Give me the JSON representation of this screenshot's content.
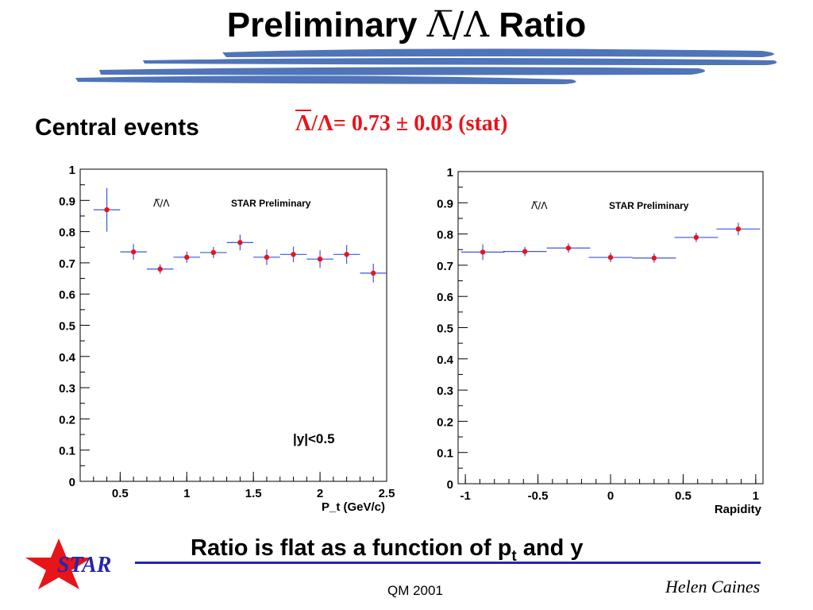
{
  "slide": {
    "title_prefix": "Preliminary ",
    "title_greek": "Λ̅/Λ",
    "title_suffix": " Ratio",
    "subtitle": "Central events",
    "ratio_bar": "Λ",
    "ratio_rest": "/Λ=  0.73 ± 0.03 (stat)",
    "conclusion_prefix": "Ratio is flat as a function of p",
    "conclusion_sub": "t",
    "conclusion_suffix": " and y",
    "logo_text": "STAR",
    "conference": "QM 2001",
    "author": "Helen Caines"
  },
  "colors": {
    "brush": "#4f74b8",
    "accent_red": "#e8141a",
    "footer_blue": "#2626a8",
    "error_bar": "#3b56e0",
    "marker": "#e8141a"
  },
  "chart_data": [
    {
      "type": "scatter",
      "xlabel": "P_t  (GeV/c)",
      "ylabel": "",
      "xlim": [
        0.2,
        2.5
      ],
      "ylim": [
        0,
        1
      ],
      "xticks": [
        0.5,
        1,
        1.5,
        2,
        2.5
      ],
      "xtick_labels": [
        "0.5",
        "1",
        "1.5",
        "2",
        "2.5"
      ],
      "yticks": [
        0,
        0.1,
        0.2,
        0.3,
        0.4,
        0.5,
        0.6,
        0.7,
        0.8,
        0.9,
        1
      ],
      "ytick_labels": [
        "0",
        "0.1",
        "0.2",
        "0.3",
        "0.4",
        "0.5",
        "0.6",
        "0.7",
        "0.8",
        "0.9",
        "1"
      ],
      "legend_label": "Λ̅/Λ",
      "annotation": "STAR Preliminary",
      "cut_label": "|y|<0.5",
      "points": [
        {
          "x": 0.4,
          "y": 0.87,
          "xerr": 0.1,
          "yerr": 0.07
        },
        {
          "x": 0.6,
          "y": 0.735,
          "xerr": 0.1,
          "yerr": 0.025
        },
        {
          "x": 0.8,
          "y": 0.68,
          "xerr": 0.1,
          "yerr": 0.015
        },
        {
          "x": 1.0,
          "y": 0.718,
          "xerr": 0.1,
          "yerr": 0.018
        },
        {
          "x": 1.2,
          "y": 0.733,
          "xerr": 0.1,
          "yerr": 0.018
        },
        {
          "x": 1.4,
          "y": 0.765,
          "xerr": 0.1,
          "yerr": 0.025
        },
        {
          "x": 1.6,
          "y": 0.718,
          "xerr": 0.1,
          "yerr": 0.025
        },
        {
          "x": 1.8,
          "y": 0.727,
          "xerr": 0.1,
          "yerr": 0.025
        },
        {
          "x": 2.0,
          "y": 0.712,
          "xerr": 0.1,
          "yerr": 0.028
        },
        {
          "x": 2.2,
          "y": 0.727,
          "xerr": 0.1,
          "yerr": 0.03
        },
        {
          "x": 2.4,
          "y": 0.667,
          "xerr": 0.1,
          "yerr": 0.03
        }
      ]
    },
    {
      "type": "scatter",
      "xlabel": "Rapidity",
      "ylabel": "",
      "xlim": [
        -1.05,
        1.05
      ],
      "ylim": [
        0,
        1
      ],
      "xticks": [
        -1,
        -0.5,
        0,
        0.5,
        1
      ],
      "xtick_labels": [
        "-1",
        "-0.5",
        "0",
        "0.5",
        "1"
      ],
      "yticks": [
        0,
        0.1,
        0.2,
        0.3,
        0.4,
        0.5,
        0.6,
        0.7,
        0.8,
        0.9,
        1
      ],
      "ytick_labels": [
        "0",
        "0.1",
        "0.2",
        "0.3",
        "0.4",
        "0.5",
        "0.6",
        "0.7",
        "0.8",
        "0.9",
        "1"
      ],
      "legend_label": "Λ̅/Λ",
      "annotation": "STAR Preliminary",
      "points": [
        {
          "x": -0.88,
          "y": 0.742,
          "xerr": 0.15,
          "yerr": 0.025
        },
        {
          "x": -0.59,
          "y": 0.744,
          "xerr": 0.15,
          "yerr": 0.015
        },
        {
          "x": -0.29,
          "y": 0.755,
          "xerr": 0.15,
          "yerr": 0.015
        },
        {
          "x": 0.0,
          "y": 0.725,
          "xerr": 0.15,
          "yerr": 0.015
        },
        {
          "x": 0.3,
          "y": 0.723,
          "xerr": 0.15,
          "yerr": 0.015
        },
        {
          "x": 0.59,
          "y": 0.789,
          "xerr": 0.15,
          "yerr": 0.015
        },
        {
          "x": 0.88,
          "y": 0.816,
          "xerr": 0.15,
          "yerr": 0.02
        }
      ]
    }
  ]
}
